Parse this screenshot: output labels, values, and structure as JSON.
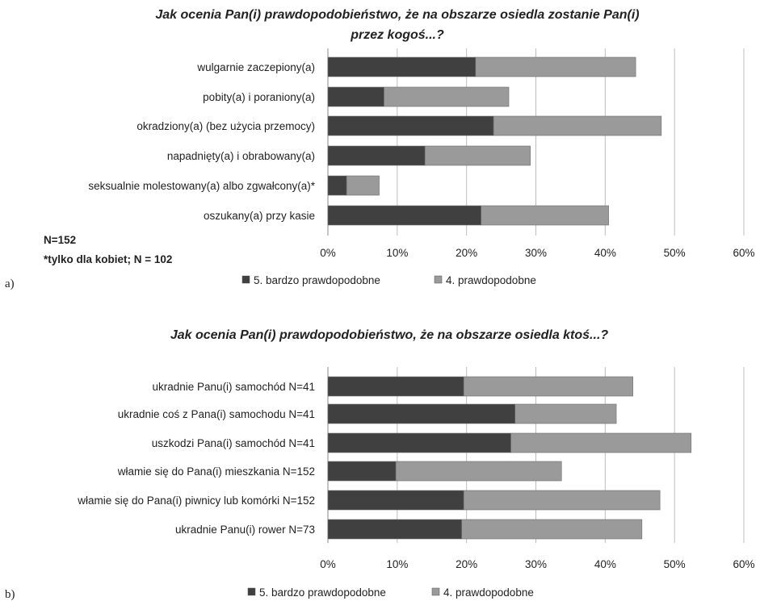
{
  "chart_data": [
    {
      "type": "bar",
      "orientation": "horizontal",
      "stacked": true,
      "panel_label": "a)",
      "title_lines": [
        "Jak ocenia Pan(i) prawdopodobieństwo, że na obszarze osiedla zostanie Pan(i)",
        "przez kogoś...?"
      ],
      "categories": [
        "wulgarnie zaczepiony(a)",
        "pobity(a) i poraniony(a)",
        "okradziony(a) (bez użycia przemocy)",
        "napadnięty(a) i obrabowany(a)",
        "seksualnie molestowany(a) albo zgwałcony(a)*",
        "oszukany(a) przy kasie"
      ],
      "series": [
        {
          "name": "5. bardzo prawdopodobne",
          "color": "#404040",
          "values": [
            21.3,
            8.1,
            23.9,
            14.0,
            2.7,
            22.1
          ]
        },
        {
          "name": "4. prawdopodobne",
          "color": "#9a9a9a",
          "values": [
            23.1,
            18.0,
            24.2,
            15.2,
            4.7,
            18.4
          ]
        }
      ],
      "x_ticks": [
        "0%",
        "10%",
        "20%",
        "30%",
        "40%",
        "50%",
        "60%"
      ],
      "xlim": [
        0,
        60
      ],
      "grid": true,
      "legend": "bottom",
      "notes": [
        "N=152",
        "*tylko dla kobiet; N = 102"
      ]
    },
    {
      "type": "bar",
      "orientation": "horizontal",
      "stacked": true,
      "panel_label": "b)",
      "title_lines": [
        "Jak ocenia Pan(i) prawdopodobieństwo, że na obszarze osiedla ktoś...?"
      ],
      "categories": [
        "ukradnie Panu(i) samochód N=41",
        "ukradnie coś z Pana(i) samochodu N=41",
        "uszkodzi Pana(i) samochód N=41",
        "włamie się do Pana(i) mieszkania N=152",
        "włamie się do Pana(i) piwnicy lub komórki N=152",
        "ukradnie Panu(i) rower N=73"
      ],
      "series": [
        {
          "name": "5. bardzo prawdopodobne",
          "color": "#404040",
          "values": [
            19.6,
            27.0,
            26.4,
            9.8,
            19.6,
            19.3
          ]
        },
        {
          "name": "4. prawdopodobne",
          "color": "#9a9a9a",
          "values": [
            24.4,
            14.6,
            26.0,
            23.9,
            28.3,
            26.0
          ]
        }
      ],
      "x_ticks": [
        "0%",
        "10%",
        "20%",
        "30%",
        "40%",
        "50%",
        "60%"
      ],
      "xlim": [
        0,
        60
      ],
      "grid": true,
      "legend": "bottom"
    }
  ]
}
